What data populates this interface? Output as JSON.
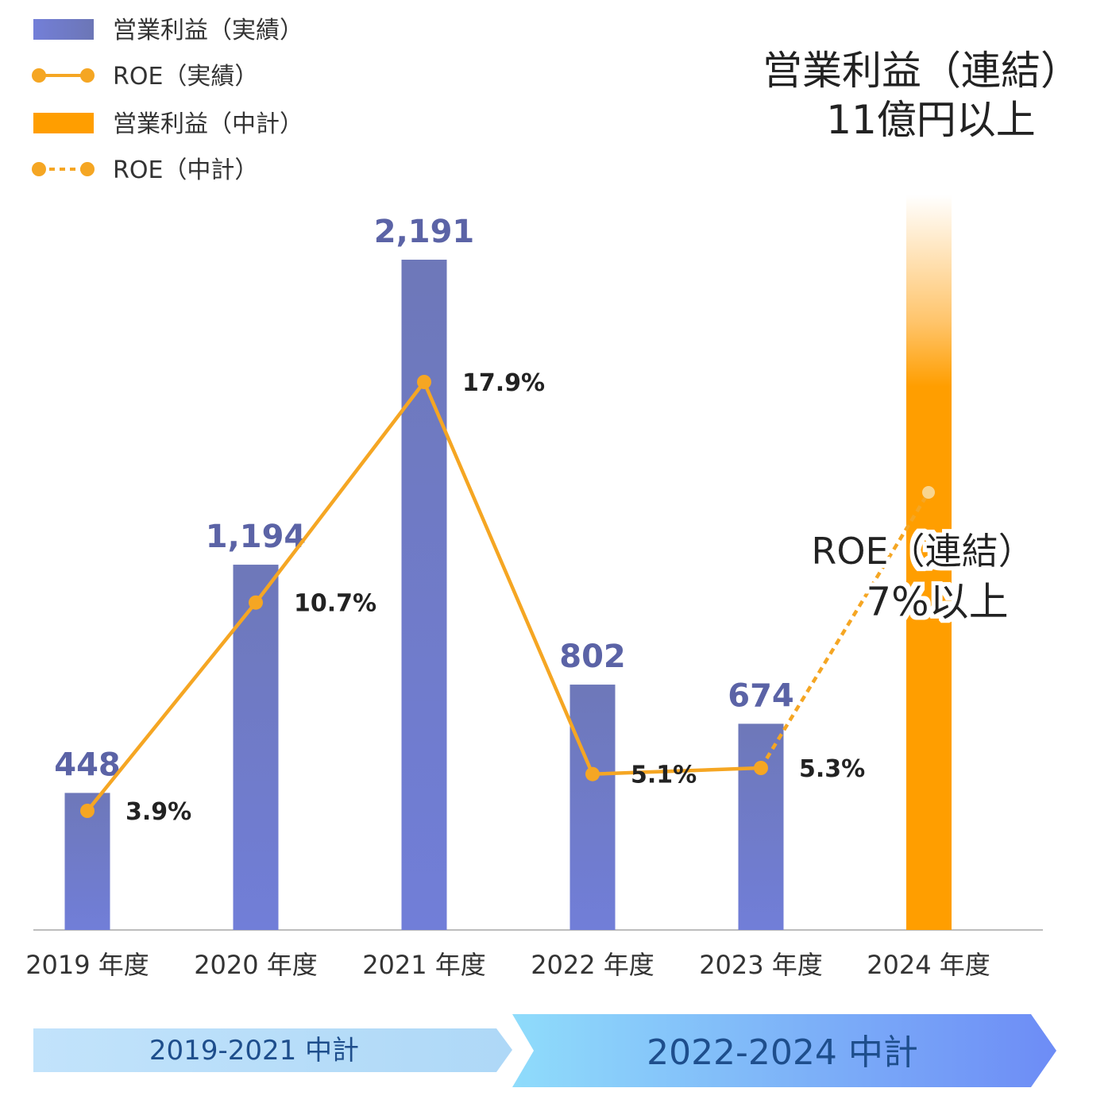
{
  "chart_data": {
    "type": "bar",
    "categories": [
      "2019 年度",
      "2020 年度",
      "2021 年度",
      "2022 年度",
      "2023 年度",
      "2024 年度"
    ],
    "series": [
      {
        "name": "営業利益（実績）",
        "type": "bar",
        "values": [
          448,
          1194,
          2191,
          802,
          674,
          null
        ],
        "labels": [
          "448",
          "1,194",
          "2,191",
          "802",
          "674",
          ""
        ]
      },
      {
        "name": "ROE（実績）",
        "type": "line",
        "values": [
          3.9,
          10.7,
          17.9,
          5.1,
          5.3,
          null
        ],
        "labels": [
          "3.9%",
          "10.7%",
          "17.9%",
          "5.1%",
          "5.3%",
          ""
        ]
      },
      {
        "name": "営業利益（中計）",
        "type": "bar",
        "values": [
          null,
          null,
          null,
          null,
          null,
          null
        ],
        "annotation": [
          "営業利益（連結）",
          "11億円以上"
        ]
      },
      {
        "name": "ROE（中計）",
        "type": "line-dotted",
        "values": [
          null,
          null,
          null,
          null,
          5.3,
          7
        ],
        "annotation": [
          "ROE（連結）",
          "7%以上"
        ]
      }
    ],
    "periods": [
      {
        "label": "2019-2021 中計",
        "from": "2019 年度",
        "to": "2021 年度"
      },
      {
        "label": "2022-2024 中計",
        "from": "2022 年度",
        "to": "2024 年度"
      }
    ],
    "legend_position": "top-left",
    "grid": false,
    "colors": {
      "actual_bar": "#6f7bcc",
      "roe_line": "#f5a623",
      "plan_bar": "#ff9e00",
      "bar_label": "#5b63a6",
      "period_left": "#b6dcf8",
      "period_right_start": "#8fdcfb",
      "period_right_end": "#6d8cf6",
      "period_text": "#1e4e8c"
    }
  }
}
